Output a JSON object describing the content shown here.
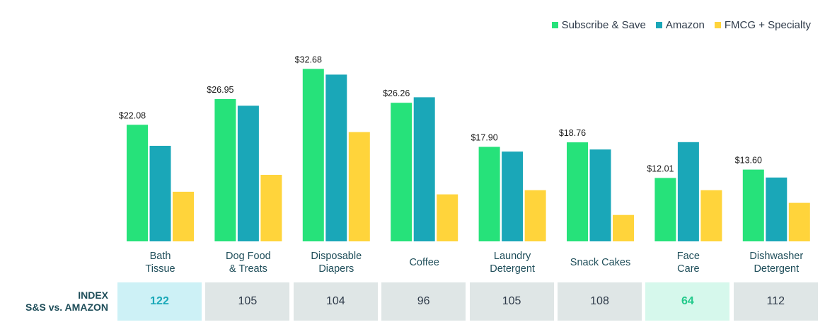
{
  "legend": [
    {
      "label": "Subscribe & Save",
      "color": "#26e27a"
    },
    {
      "label": "Amazon",
      "color": "#1aa7b8"
    },
    {
      "label": "FMCG + Specialty",
      "color": "#ffd43b"
    }
  ],
  "index_title": {
    "line1": "INDEX",
    "line2": "S&S vs. AMAZON"
  },
  "index_cells": [
    {
      "value": "122",
      "bg": "#cdf1f6",
      "color": "#19a8b8",
      "bold": true
    },
    {
      "value": "105",
      "bg": "#dfe6e6",
      "color": "#2f3b4a",
      "bold": false
    },
    {
      "value": "104",
      "bg": "#dfe6e6",
      "color": "#2f3b4a",
      "bold": false
    },
    {
      "value": "96",
      "bg": "#dfe6e6",
      "color": "#2f3b4a",
      "bold": false
    },
    {
      "value": "105",
      "bg": "#dfe6e6",
      "color": "#2f3b4a",
      "bold": false
    },
    {
      "value": "108",
      "bg": "#dfe6e6",
      "color": "#2f3b4a",
      "bold": false
    },
    {
      "value": "64",
      "bg": "#d6f8ec",
      "color": "#23c98b",
      "bold": true
    },
    {
      "value": "112",
      "bg": "#dfe6e6",
      "color": "#2f3b4a",
      "bold": false
    }
  ],
  "chart_data": {
    "type": "bar",
    "categories": [
      [
        "Bath",
        "Tissue"
      ],
      [
        "Dog Food",
        "& Treats"
      ],
      [
        "Disposable",
        "Diapers"
      ],
      [
        "Coffee"
      ],
      [
        "Laundry",
        "Detergent"
      ],
      [
        "Snack Cakes"
      ],
      [
        "Face",
        "Care"
      ],
      [
        "Dishwasher",
        "Detergent"
      ]
    ],
    "series": [
      {
        "name": "Subscribe & Save",
        "color": "#26e27a",
        "values": [
          22.08,
          26.95,
          32.68,
          26.26,
          17.9,
          18.76,
          12.01,
          13.6
        ],
        "labels": [
          "$22.08",
          "$26.95",
          "$32.68",
          "$26.26",
          "$17.90",
          "$18.76",
          "$12.01",
          "$13.60"
        ]
      },
      {
        "name": "Amazon",
        "color": "#1aa7b8",
        "values": [
          18.1,
          25.7,
          31.6,
          27.3,
          17.0,
          17.4,
          18.8,
          12.1
        ]
      },
      {
        "name": "FMCG + Specialty",
        "color": "#ffd43b",
        "values": [
          9.4,
          12.6,
          20.7,
          8.9,
          9.7,
          5.0,
          9.7,
          7.3
        ]
      }
    ],
    "ylim": [
      0,
      35
    ],
    "grid": false,
    "legend_position": "top-right"
  }
}
